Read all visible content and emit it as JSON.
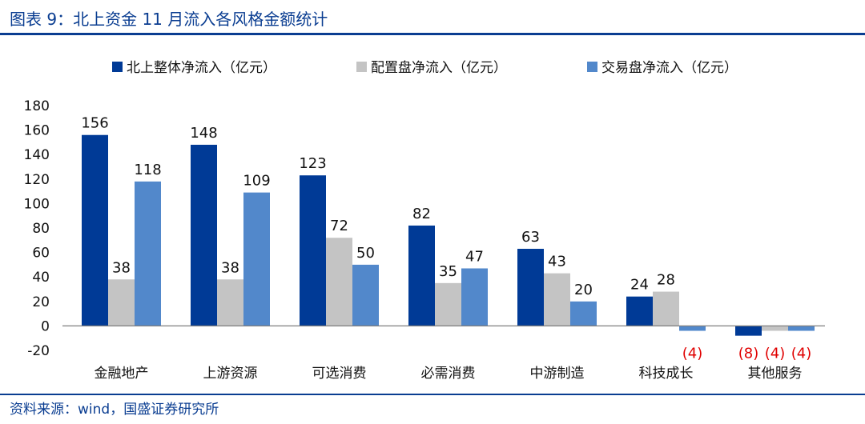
{
  "header": {
    "title": "图表 9：北上资金 11 月流入各风格金额统计"
  },
  "footer": {
    "source": "资料来源：wind，国盛证券研究所"
  },
  "colors": {
    "series": [
      "#003a96",
      "#c4c4c4",
      "#5288cb"
    ],
    "text": "#111111",
    "negative_label": "#e00000",
    "brand": "#0a3d91"
  },
  "chart_data": {
    "type": "bar",
    "title": "",
    "xlabel": "",
    "ylabel": "",
    "ylim": [
      -20,
      180
    ],
    "yticks": [
      -20,
      0,
      20,
      40,
      60,
      80,
      100,
      120,
      140,
      160,
      180
    ],
    "grid": false,
    "legend_position": "top",
    "categories": [
      "金融地产",
      "上游资源",
      "可选消费",
      "必需消费",
      "中游制造",
      "科技成长",
      "其他服务"
    ],
    "series": [
      {
        "name": "北上整体净流入（亿元）",
        "values": [
          156,
          148,
          123,
          82,
          63,
          24,
          -8
        ],
        "labels": [
          "156",
          "148",
          "123",
          "82",
          "63",
          "24",
          "(8)"
        ]
      },
      {
        "name": "配置盘净流入（亿元）",
        "values": [
          38,
          38,
          72,
          35,
          43,
          28,
          -4
        ],
        "labels": [
          "38",
          "38",
          "72",
          "35",
          "43",
          "28",
          "(4)"
        ]
      },
      {
        "name": "交易盘净流入（亿元）",
        "values": [
          118,
          109,
          50,
          47,
          20,
          -4,
          -4
        ],
        "labels": [
          "118",
          "109",
          "50",
          "47",
          "20",
          "(4)",
          "(4)"
        ]
      }
    ]
  }
}
